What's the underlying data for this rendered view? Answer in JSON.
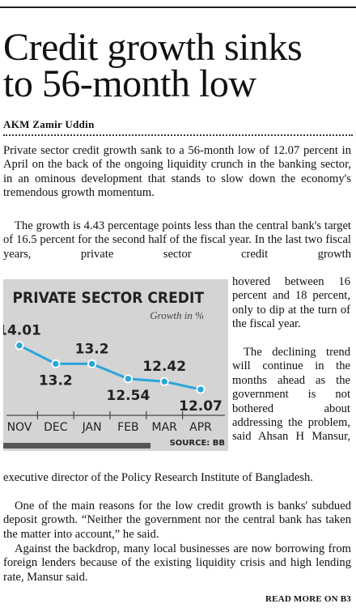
{
  "headline": [
    "Credit growth sinks",
    "to 56-month low"
  ],
  "byline": "AKM Zamir Uddin",
  "paragraphs": {
    "p1": "Private sector credit growth sank to a 56-month low of 12.07 percent in April on the back of the ongoing liquidity crunch in the banking sector, in an ominous development that stands to slow down the economy's tremendous growth momentum.",
    "p2_full": "The growth is 4.43 percentage points less than the central bank's target of 16.5 percent for the second half of the fiscal year. In the last two fiscal years, private sector credit growth",
    "p2_side": "hovered between 16 percent and 18 percent, only to dip at the turn of the fiscal year.",
    "p3_side": "The declining trend will continue in the months ahead as the government is not bothered about addressing the problem, said Ahsan H Mansur,",
    "p3_full": "executive director of the Policy Research Institute of Bangladesh.",
    "p4": "One of the main reasons for the low credit growth is banks' subdued deposit growth. “Neither the government nor the central bank has taken the matter into account,” he said.",
    "p5": "Against the backdrop, many local businesses are now borrowing from foreign lenders because of the existing liquidity crisis and high lending rate, Mansur said."
  },
  "read_more": "READ MORE ON B3",
  "chart_data": {
    "type": "line",
    "title": "PRIVATE SECTOR CREDIT",
    "subtitle": "Growth in %",
    "source": "SOURCE: BB",
    "categories": [
      "NOV",
      "DEC",
      "JAN",
      "FEB",
      "MAR",
      "APR"
    ],
    "series": [
      {
        "values": [
          14.01,
          13.2,
          13.2,
          12.54,
          12.42,
          12.07
        ]
      }
    ],
    "data_labels": [
      "14.01",
      "13.2",
      "13.2",
      "12.54",
      "12.42",
      "12.07"
    ],
    "ylim": [
      11.5,
      14.5
    ],
    "grid": false,
    "colors": {
      "line": "#2aa6d9",
      "background": "#d4d4d4",
      "text": "#222222"
    }
  }
}
